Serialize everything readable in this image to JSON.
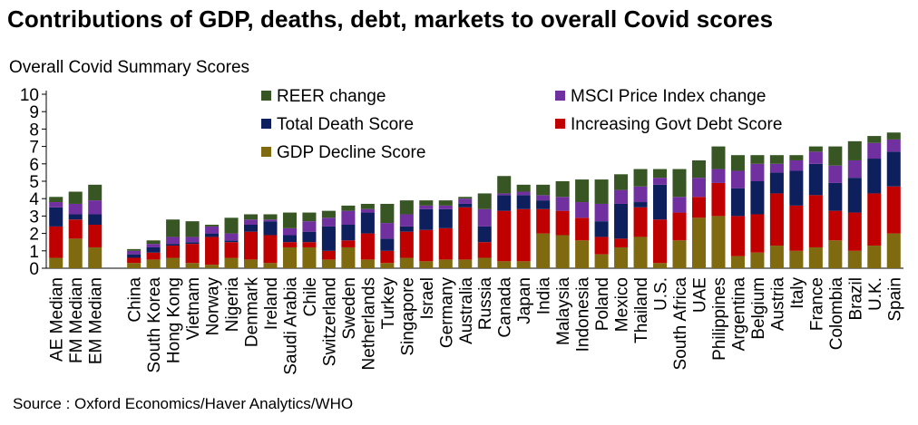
{
  "chart_data": {
    "type": "bar",
    "stacked": true,
    "title": "Contributions of GDP, deaths, debt, markets to overall Covid scores",
    "ylabel": "Overall Covid Summary Scores",
    "source": "Source : Oxford Economics/Haver Analytics/WHO",
    "ylim": [
      0,
      10
    ],
    "yticks": [
      "0",
      "1",
      "2",
      "3",
      "4",
      "5",
      "6",
      "7",
      "8",
      "9",
      "10"
    ],
    "legend_position": "top-center",
    "categories": [
      "AE Median",
      "FM Median",
      "EM Median",
      "",
      "China",
      "South Korea",
      "Hong Kong",
      "Vietnam",
      "Norway",
      "Nigeria",
      "Denmark",
      "Ireland",
      "Saudi Arabia",
      "Chile",
      "Switzerland",
      "Sweden",
      "Netherlands",
      "Turkey",
      "Singapore",
      "Israel",
      "Germany",
      "Australia",
      "Russia",
      "Canada",
      "Japan",
      "India",
      "Malaysia",
      "Indonesia",
      "Poland",
      "Mexico",
      "Thailand",
      "U.S.",
      "South Africa",
      "UAE",
      "Philippines",
      "Argentina",
      "Belgium",
      "Austria",
      "Italy",
      "France",
      "Colombia",
      "Brazil",
      "U.K.",
      "Spain"
    ],
    "series": [
      {
        "name": "GDP Decline Score",
        "color": "#7f6a0f",
        "values": [
          0.6,
          1.7,
          1.2,
          null,
          0.3,
          0.5,
          0.6,
          0.3,
          0.2,
          0.6,
          0.5,
          0.3,
          1.2,
          1.2,
          0.5,
          1.2,
          0.5,
          0.3,
          0.6,
          0.4,
          0.5,
          0.5,
          0.6,
          0.4,
          0.4,
          2.0,
          1.9,
          1.6,
          0.8,
          1.2,
          1.8,
          0.3,
          1.6,
          2.9,
          3.0,
          0.7,
          0.9,
          1.3,
          1.0,
          1.2,
          1.6,
          1.0,
          1.3,
          2.0
        ]
      },
      {
        "name": "Increasing Govt Debt Score",
        "color": "#c00000",
        "values": [
          1.8,
          1.1,
          1.3,
          null,
          0.3,
          0.4,
          0.7,
          1.1,
          1.6,
          0.9,
          1.6,
          1.6,
          0.3,
          0.3,
          0.5,
          0.4,
          1.5,
          0.7,
          1.5,
          1.8,
          1.8,
          3.0,
          0.9,
          2.9,
          3.0,
          1.4,
          1.4,
          1.3,
          1.0,
          0.5,
          1.7,
          2.5,
          1.6,
          1.2,
          1.9,
          2.3,
          2.2,
          3.0,
          2.6,
          3.0,
          1.7,
          2.2,
          3.0,
          2.7
        ]
      },
      {
        "name": "Total Death Score",
        "color": "#0d1f5c",
        "values": [
          1.1,
          0.3,
          0.6,
          null,
          0.2,
          0.3,
          0.1,
          0.1,
          0.2,
          0.1,
          0.4,
          0.8,
          0.4,
          0.6,
          1.4,
          0.9,
          1.2,
          0.7,
          0.3,
          1.2,
          1.1,
          0.2,
          0.9,
          0.9,
          0.8,
          0.5,
          0.0,
          0.0,
          0.9,
          2.0,
          0.3,
          2.0,
          0.0,
          0.0,
          0.0,
          1.6,
          1.9,
          1.2,
          2.0,
          1.8,
          1.6,
          2.0,
          2.0,
          2.0
        ]
      },
      {
        "name": "MSCI Price Index change",
        "color": "#7030a0",
        "values": [
          0.3,
          0.6,
          0.8,
          null,
          0.2,
          0.2,
          0.4,
          0.3,
          0.4,
          0.4,
          0.3,
          0.1,
          0.4,
          0.6,
          0.5,
          0.8,
          0.2,
          0.9,
          0.7,
          0.2,
          0.2,
          0.3,
          1.0,
          0.1,
          0.2,
          0.3,
          0.8,
          0.9,
          1.0,
          0.8,
          0.9,
          0.4,
          0.9,
          1.1,
          0.8,
          1.0,
          1.0,
          0.5,
          0.6,
          0.7,
          1.0,
          1.0,
          0.9,
          0.7
        ]
      },
      {
        "name": "REER change",
        "color": "#375623",
        "values": [
          0.3,
          0.7,
          0.9,
          null,
          0.1,
          0.2,
          1.0,
          0.9,
          0.1,
          0.9,
          0.3,
          0.3,
          0.9,
          0.5,
          0.4,
          0.3,
          0.3,
          1.1,
          0.8,
          0.3,
          0.3,
          0.1,
          0.9,
          1.0,
          0.4,
          0.6,
          0.9,
          1.3,
          1.4,
          0.9,
          1.0,
          0.5,
          1.6,
          1.0,
          1.3,
          0.9,
          0.5,
          0.5,
          0.3,
          0.3,
          1.1,
          1.1,
          0.4,
          0.4
        ]
      }
    ],
    "legend_order": [
      "REER change",
      "MSCI Price Index change",
      "Total Death Score",
      "Increasing Govt Debt Score",
      "GDP Decline Score"
    ]
  }
}
